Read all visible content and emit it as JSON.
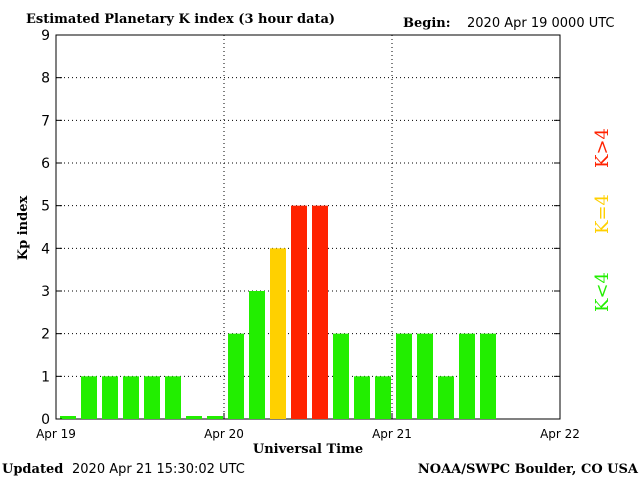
{
  "header": {
    "title": "Estimated Planetary K index (3 hour data)",
    "begin_label": "Begin:",
    "begin_value": "2020 Apr 19 0000 UTC"
  },
  "footer": {
    "updated_label": "Updated",
    "updated_value": "2020 Apr 21 15:30:02 UTC",
    "source": "NOAA/SWPC Boulder, CO USA"
  },
  "legend": {
    "high": "K>4",
    "mid": "K=4",
    "low": "K<4"
  },
  "colors": {
    "low": "#22ee00",
    "mid": "#ffd000",
    "high": "#ff2200",
    "grid": "#000000"
  },
  "chart_data": {
    "type": "bar",
    "title": "Estimated Planetary K index (3 hour data)",
    "xlabel": "Universal Time",
    "ylabel": "Kp index",
    "ylim": [
      0,
      9
    ],
    "yticks": [
      "0",
      "1",
      "2",
      "3",
      "4",
      "5",
      "6",
      "7",
      "8",
      "9"
    ],
    "xticks": [
      "Apr 19",
      "Apr 20",
      "Apr 21",
      "Apr 22"
    ],
    "interval_hours": 3,
    "values": [
      0,
      1,
      1,
      1,
      1,
      1,
      0,
      0,
      2,
      3,
      4,
      5,
      5,
      2,
      1,
      1,
      2,
      2,
      1,
      2,
      2
    ],
    "grid": true
  }
}
